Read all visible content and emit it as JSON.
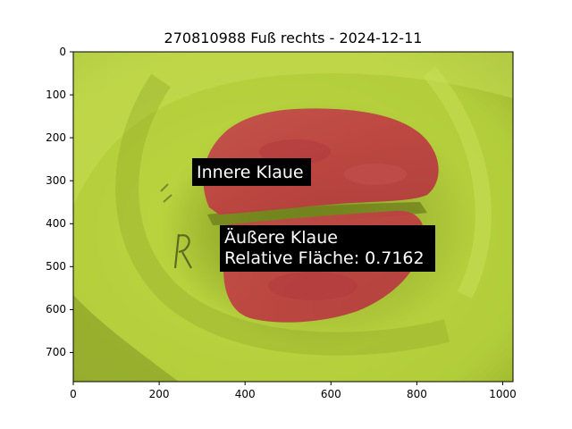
{
  "title": "270810988 Fuß rechts - 2024-12-11",
  "image": {
    "description_colors": {
      "background": "#b5d23a",
      "background_dark": "#7f9a1f",
      "mask": "#c8464a",
      "mask_dark": "#a8323a"
    }
  },
  "axes": {
    "xlim": [
      0,
      1024
    ],
    "ylim": [
      768,
      0
    ],
    "x_ticks": [
      "0",
      "200",
      "400",
      "600",
      "800",
      "1000"
    ],
    "y_ticks": [
      "0",
      "100",
      "200",
      "300",
      "400",
      "500",
      "600",
      "700"
    ]
  },
  "labels": {
    "inner": "Innere Klaue",
    "outer_line1": "Äußere Klaue",
    "outer_line2": "Relative Fläche: 0.7162"
  }
}
